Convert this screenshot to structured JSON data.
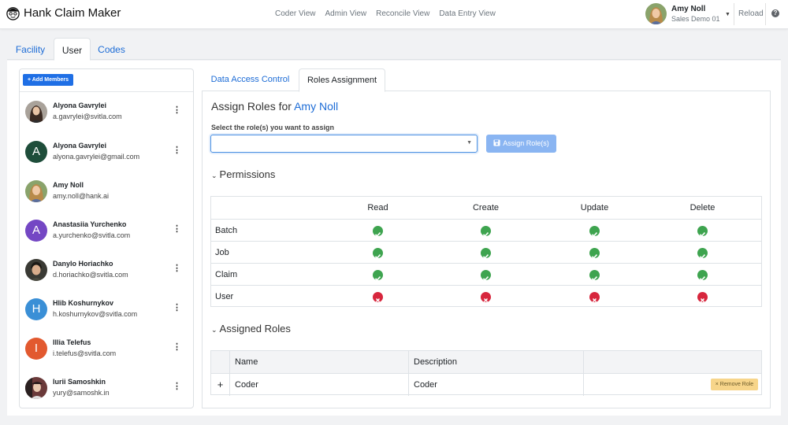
{
  "app": {
    "title": "Hank Claim Maker"
  },
  "nav": {
    "links": [
      "Coder View",
      "Admin View",
      "Reconcile View",
      "Data Entry View"
    ]
  },
  "current_user": {
    "name": "Amy Noll",
    "org": "Sales Demo 01"
  },
  "header_actions": {
    "reload": "Reload",
    "help": "?"
  },
  "page_tabs": [
    "Facility",
    "User",
    "Codes"
  ],
  "members": {
    "add_label": "+ Add Members",
    "list": [
      {
        "name": "Alyona Gavrylei",
        "email": "a.gavrylei@svitla.com",
        "avatar": "photo",
        "initial": "",
        "color": "#7b5b4a"
      },
      {
        "name": "Alyona Gavrylei",
        "email": "alyona.gavrylei@gmail.com",
        "avatar": "initial",
        "initial": "A",
        "color": "#1e4d3a"
      },
      {
        "name": "Amy Noll",
        "email": "amy.noll@hank.ai",
        "avatar": "photo",
        "initial": "",
        "color": "#8aa36b"
      },
      {
        "name": "Anastasiia Yurchenko",
        "email": "a.yurchenko@svitla.com",
        "avatar": "initial",
        "initial": "A",
        "color": "#7447c4"
      },
      {
        "name": "Danylo Horiachko",
        "email": "d.horiachko@svitla.com",
        "avatar": "photo",
        "initial": "",
        "color": "#3a3a34"
      },
      {
        "name": "Hlib Koshurnykov",
        "email": "h.koshurnykov@svitla.com",
        "avatar": "initial",
        "initial": "H",
        "color": "#3a8fd6"
      },
      {
        "name": "Illia Telefus",
        "email": "i.telefus@svitla.com",
        "avatar": "initial",
        "initial": "I",
        "color": "#e2592f"
      },
      {
        "name": "Iurii Samoshkin",
        "email": "yury@samoshk.in",
        "avatar": "photo",
        "initial": "",
        "color": "#5a2a2a"
      }
    ]
  },
  "inner_tabs": [
    "Data Access Control",
    "Roles Assignment"
  ],
  "assign": {
    "title_prefix": "Assign Roles for",
    "title_name": "Amy Noll",
    "select_label": "Select the role(s) you want to assign",
    "select_value": "",
    "button_label": "Assign Role(s)"
  },
  "permissions": {
    "title": "Permissions",
    "columns": [
      "Read",
      "Create",
      "Update",
      "Delete"
    ],
    "rows": [
      {
        "name": "Batch",
        "values": [
          true,
          true,
          true,
          true
        ]
      },
      {
        "name": "Job",
        "values": [
          true,
          true,
          true,
          true
        ]
      },
      {
        "name": "Claim",
        "values": [
          true,
          true,
          true,
          true
        ]
      },
      {
        "name": "User",
        "values": [
          false,
          false,
          false,
          false
        ]
      }
    ]
  },
  "assigned_roles": {
    "title": "Assigned Roles",
    "columns": [
      "Name",
      "Description"
    ],
    "rows": [
      {
        "name": "Coder",
        "description": "Coder",
        "remove_label": "× Remove Role"
      }
    ]
  },
  "colors": {
    "accent": "#1d6cd6",
    "primary_button": "#1f6fe5",
    "ok": "#3ea44f",
    "denied": "#d7263d",
    "warning_button": "#f7d58a"
  }
}
